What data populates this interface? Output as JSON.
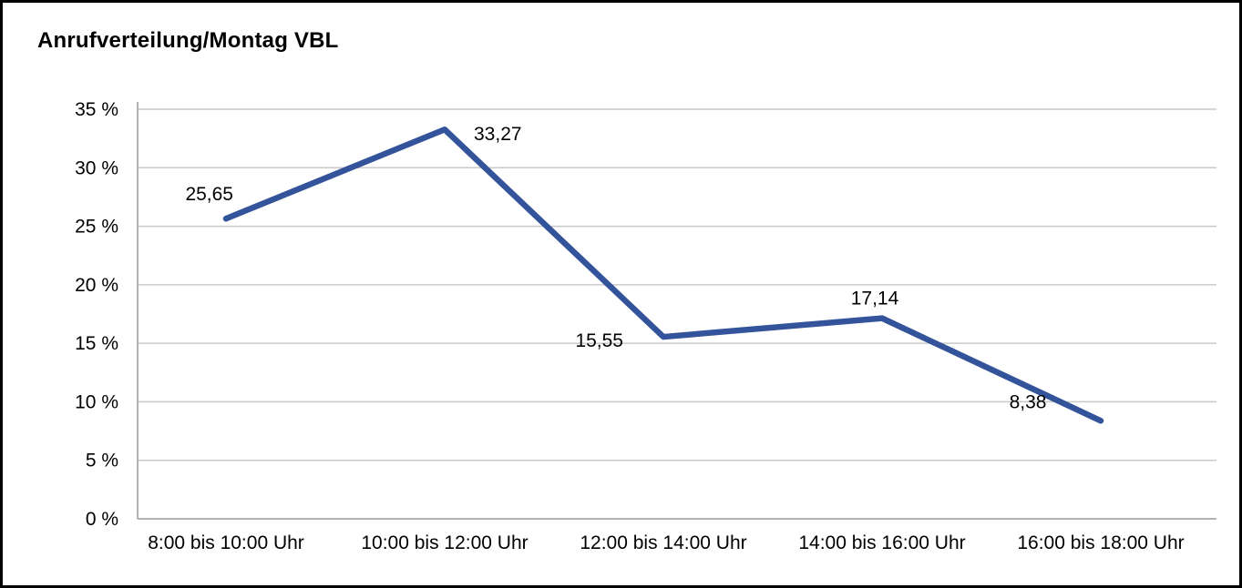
{
  "chart_data": {
    "type": "line",
    "title": "Anrufverteilung/Montag VBL",
    "categories": [
      "8:00 bis 10:00 Uhr",
      "10:00 bis 12:00 Uhr",
      "12:00 bis 14:00 Uhr",
      "14:00 bis 16:00 Uhr",
      "16:00 bis 18:00 Uhr"
    ],
    "values": [
      25.65,
      33.27,
      15.55,
      17.14,
      8.38
    ],
    "point_labels": [
      "25,65",
      "33,27",
      "15,55",
      "17,14",
      "8,38"
    ],
    "y_ticks": [
      "0 %",
      "5 %",
      "10 %",
      "15 %",
      "20 %",
      "25 %",
      "30 %",
      "35 %"
    ],
    "ylim": [
      0,
      35
    ],
    "y_step": 5,
    "xlabel": "",
    "ylabel": "",
    "grid": "horizontal",
    "legend": "none",
    "colors": {
      "line": "#33539B",
      "gridline": "#c9c9c9",
      "axis": "#9a9a9a"
    }
  }
}
